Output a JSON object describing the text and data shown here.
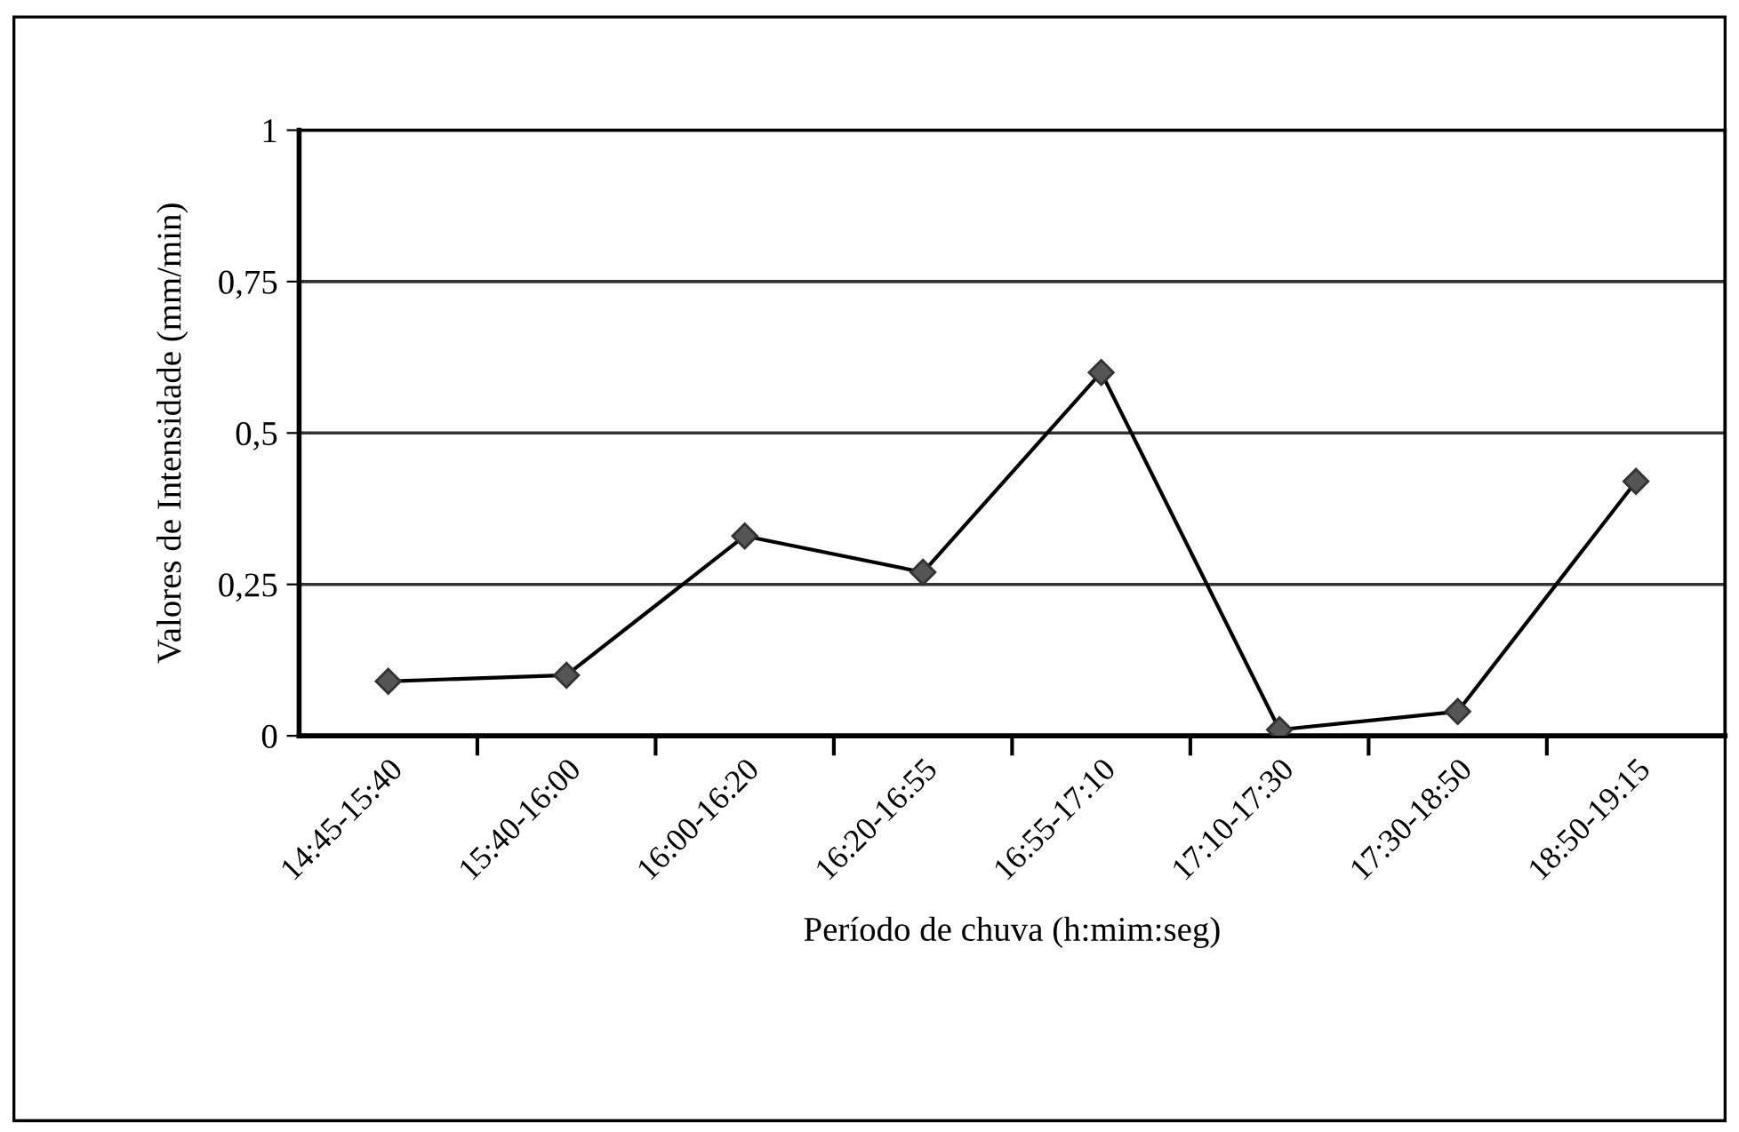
{
  "chart_data": {
    "type": "line",
    "xlabel": "Período de chuva (h:mim:seg)",
    "ylabel": "Valores de Intensidade (mm/min)",
    "categories": [
      "14:45-15:40",
      "15:40-16:00",
      "16:00-16:20",
      "16:20-16:55",
      "16:55-17:10",
      "17:10-17:30",
      "17:30-18:50",
      "18:50-19:15"
    ],
    "series": [
      {
        "color": "#555555",
        "values": [
          0.09,
          0.1,
          0.33,
          0.27,
          0.6,
          0.01,
          0.04,
          0.42
        ]
      }
    ],
    "ylim": [
      0,
      1
    ],
    "yticks": [
      0,
      {
        "value": 0.25,
        "label": "0,25"
      },
      {
        "value": 0.5,
        "label": "0,5"
      },
      {
        "value": 0.75,
        "label": "0,75"
      },
      1
    ],
    "grid": "y",
    "marker": "diamond",
    "line_style": "solid"
  }
}
